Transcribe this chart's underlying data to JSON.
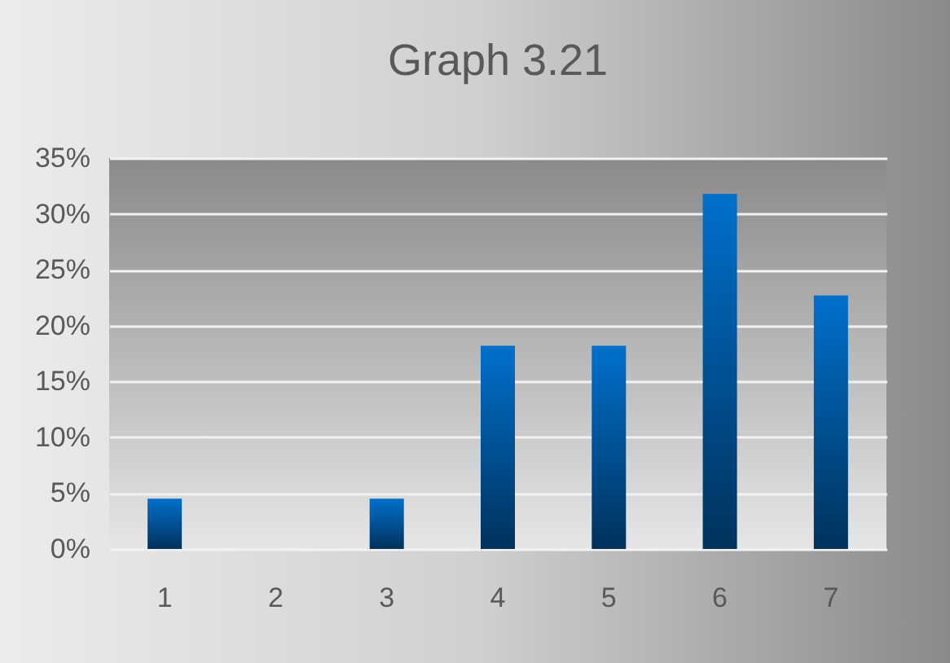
{
  "chart_data": {
    "type": "bar",
    "title": "Graph 3.21",
    "categories": [
      "1",
      "2",
      "3",
      "4",
      "5",
      "6",
      "7"
    ],
    "values": [
      4.5,
      0,
      4.5,
      18.2,
      18.2,
      31.8,
      22.7
    ],
    "color": "#0070cc",
    "ylim": [
      0,
      35
    ],
    "yticks": [
      {
        "value": 0,
        "label": "0%"
      },
      {
        "value": 5,
        "label": "5%"
      },
      {
        "value": 10,
        "label": "10%"
      },
      {
        "value": 15,
        "label": "15%"
      },
      {
        "value": 20,
        "label": "20%"
      },
      {
        "value": 25,
        "label": "25%"
      },
      {
        "value": 30,
        "label": "30%"
      },
      {
        "value": 35,
        "label": "35%"
      }
    ],
    "grid": "y"
  }
}
